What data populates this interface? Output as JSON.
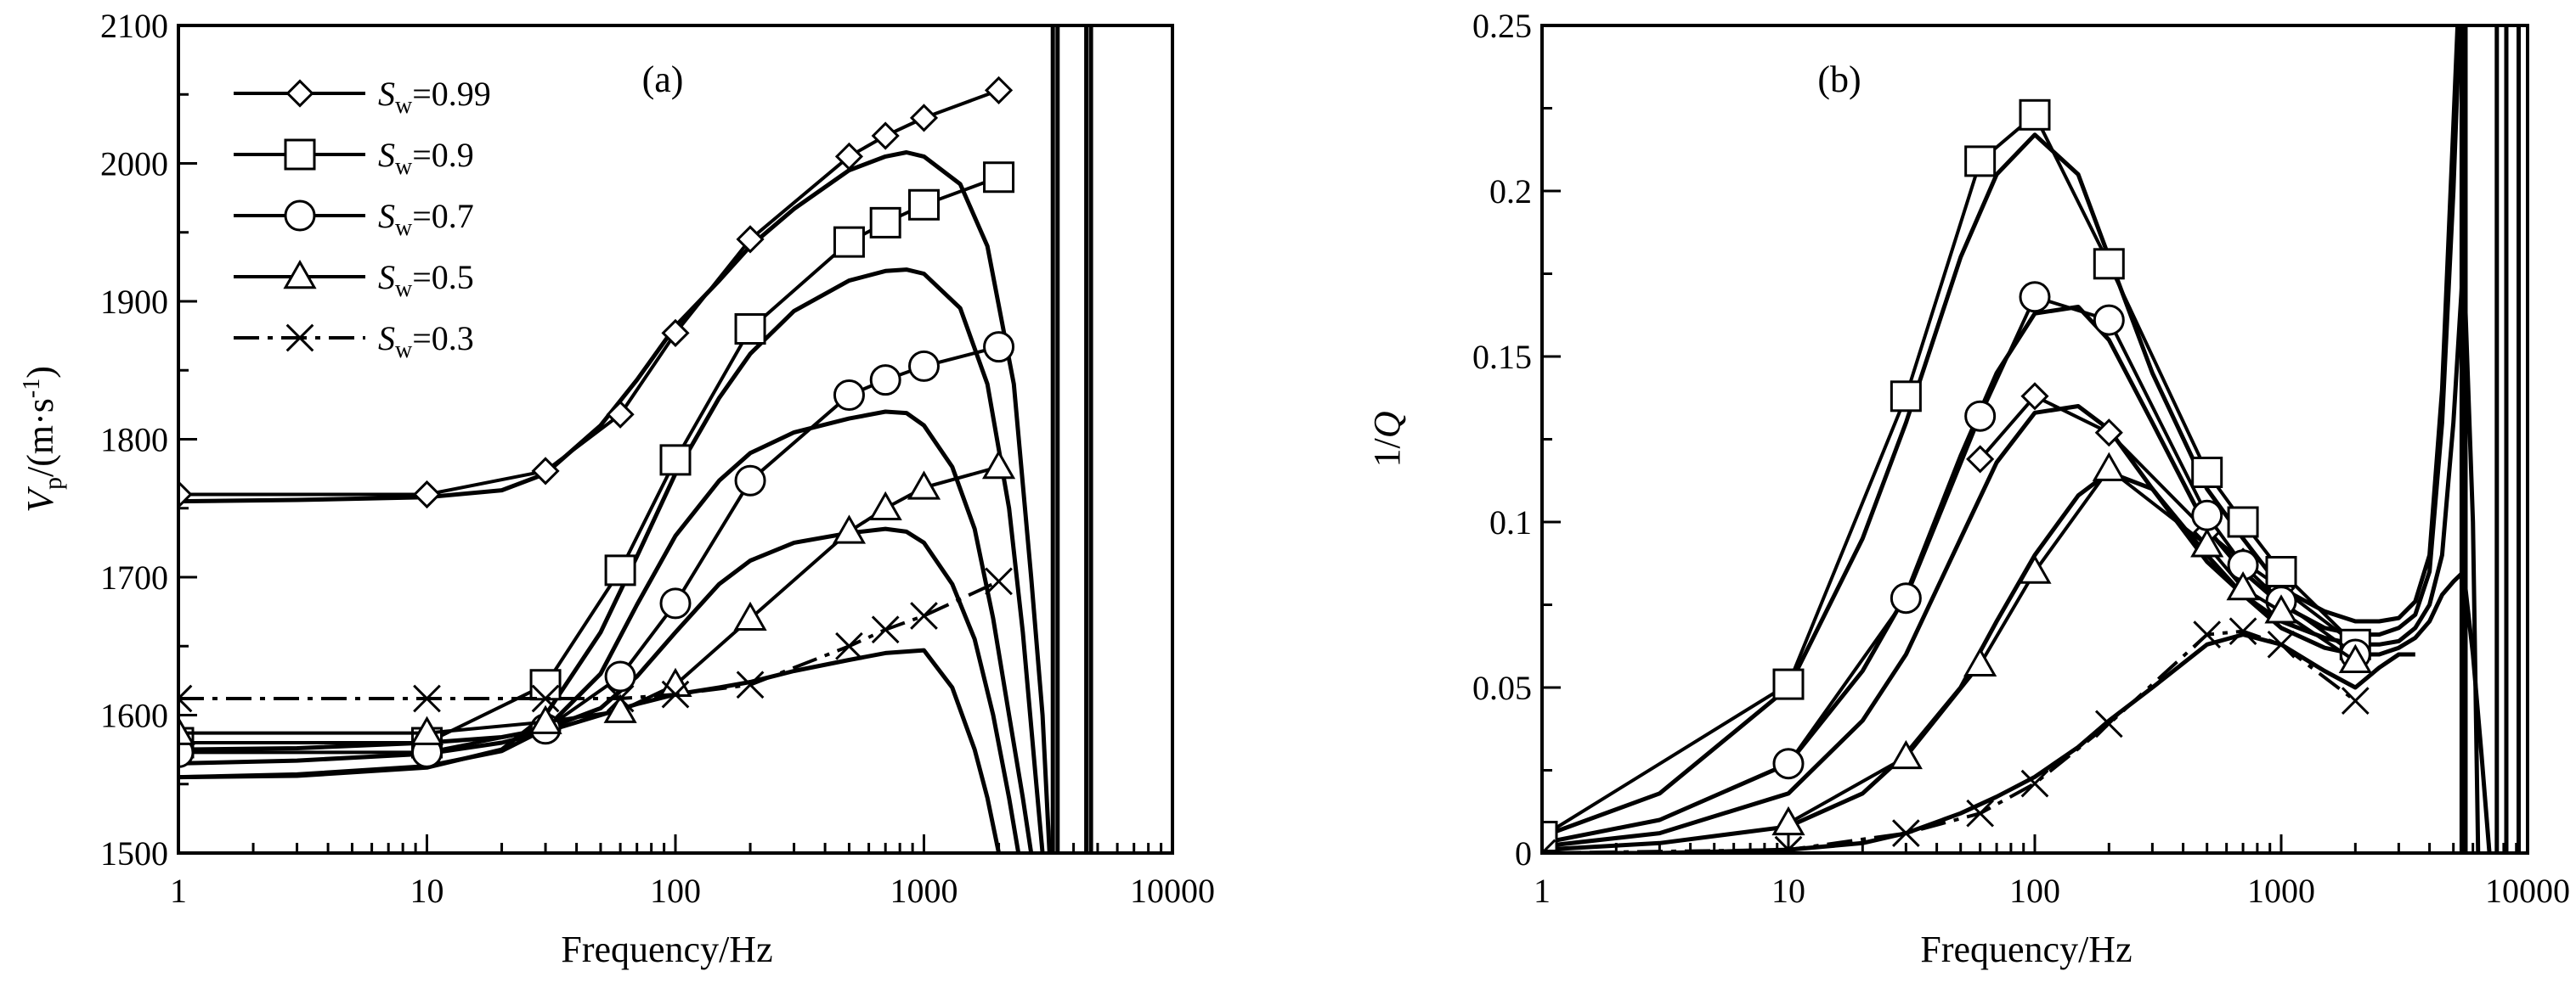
{
  "chart_data": [
    {
      "type": "line",
      "panel_label": "(a)",
      "xlabel": "Frequency/Hz",
      "ylabel_main": "V",
      "ylabel_sub": "p",
      "ylabel_unit": "/(m·s",
      "ylabel_unit_sup": "-1",
      "ylabel_close": ")",
      "xscale": "log",
      "xlim": [
        1,
        10000
      ],
      "ylim": [
        1500,
        2100
      ],
      "xticks": [
        1,
        10,
        100,
        1000,
        10000
      ],
      "xtick_labels": [
        "1",
        "10",
        "100",
        "1000",
        "10000"
      ],
      "yticks": [
        1500,
        1600,
        1700,
        1800,
        1900,
        2000,
        2100
      ],
      "ytick_labels": [
        "1500",
        "1600",
        "1700",
        "1800",
        "1900",
        "2000",
        "2100"
      ],
      "grid": false,
      "legend_position": "top-left",
      "series": [
        {
          "name": "Sw=0.99",
          "legend_main": "S",
          "legend_sub": "w",
          "legend_value": "=0.99",
          "marker": "diamond",
          "dash": "solid",
          "x": [
            1,
            10,
            30,
            60,
            100,
            200,
            500,
            700,
            1000,
            2000
          ],
          "y": [
            1760,
            1760,
            1777,
            1818,
            1877,
            1945,
            2005,
            2020,
            2033,
            2053
          ]
        },
        {
          "name": "Sw=0.9",
          "legend_main": "S",
          "legend_sub": "w",
          "legend_value": "=0.9",
          "marker": "square",
          "dash": "solid",
          "x": [
            1,
            10,
            30,
            60,
            100,
            200,
            500,
            700,
            1000,
            2000
          ],
          "y": [
            1580,
            1580,
            1622,
            1705,
            1785,
            1880,
            1943,
            1957,
            1970,
            1990
          ]
        },
        {
          "name": "Sw=0.7",
          "legend_main": "S",
          "legend_sub": "w",
          "legend_value": "=0.7",
          "marker": "circle",
          "dash": "solid",
          "x": [
            1,
            10,
            30,
            60,
            100,
            200,
            500,
            700,
            1000,
            2000
          ],
          "y": [
            1573,
            1573,
            1590,
            1628,
            1681,
            1770,
            1832,
            1843,
            1853,
            1867
          ]
        },
        {
          "name": "Sw=0.5",
          "legend_main": "S",
          "legend_sub": "w",
          "legend_value": "=0.5",
          "marker": "triangle",
          "dash": "solid",
          "x": [
            1,
            10,
            30,
            60,
            100,
            200,
            500,
            700,
            1000,
            2000
          ],
          "y": [
            1587,
            1587,
            1595,
            1603,
            1622,
            1670,
            1733,
            1750,
            1765,
            1780
          ]
        },
        {
          "name": "Sw=0.3",
          "legend_main": "S",
          "legend_sub": "w",
          "legend_value": "=0.3",
          "marker": "x",
          "dash": "dashdot",
          "x": [
            1,
            10,
            30,
            60,
            100,
            200,
            500,
            700,
            1000,
            2000
          ],
          "y": [
            1612,
            1612,
            1612,
            1612,
            1615,
            1622,
            1650,
            1662,
            1672,
            1697
          ]
        }
      ],
      "model_curves": [
        {
          "x": [
            1,
            3,
            10,
            20,
            30,
            50,
            70,
            100,
            150,
            200,
            300,
            500,
            700,
            850,
            1000,
            1400,
            1800,
            2300,
            2700,
            3000,
            3200
          ],
          "y": [
            1755,
            1756,
            1758,
            1763,
            1775,
            1810,
            1843,
            1882,
            1915,
            1940,
            1967,
            1995,
            2005,
            2008,
            2005,
            1985,
            1940,
            1840,
            1700,
            1600,
            1500
          ]
        },
        {
          "x": [
            1,
            3,
            10,
            20,
            30,
            50,
            70,
            100,
            150,
            200,
            300,
            500,
            700,
            850,
            1000,
            1400,
            1800,
            2200,
            2500,
            2800,
            3000
          ],
          "y": [
            1555,
            1556,
            1562,
            1575,
            1600,
            1660,
            1715,
            1775,
            1830,
            1862,
            1893,
            1915,
            1922,
            1923,
            1920,
            1895,
            1840,
            1750,
            1660,
            1560,
            1500
          ]
        },
        {
          "x": [
            1,
            3,
            10,
            20,
            30,
            50,
            70,
            100,
            150,
            200,
            300,
            500,
            700,
            850,
            1000,
            1300,
            1600,
            1900,
            2200,
            2500,
            2700
          ],
          "y": [
            1555,
            1557,
            1563,
            1574,
            1590,
            1630,
            1680,
            1730,
            1770,
            1790,
            1805,
            1815,
            1820,
            1819,
            1810,
            1780,
            1735,
            1670,
            1600,
            1540,
            1500
          ]
        },
        {
          "x": [
            1,
            3,
            10,
            20,
            30,
            50,
            70,
            100,
            150,
            200,
            300,
            500,
            700,
            850,
            1000,
            1300,
            1600,
            1900,
            2200,
            2400
          ],
          "y": [
            1575,
            1576,
            1580,
            1584,
            1590,
            1605,
            1628,
            1660,
            1695,
            1712,
            1725,
            1732,
            1735,
            1733,
            1725,
            1695,
            1655,
            1600,
            1540,
            1500
          ]
        },
        {
          "x": [
            1,
            3,
            10,
            20,
            30,
            50,
            70,
            100,
            150,
            200,
            300,
            500,
            700,
            1000,
            1300,
            1600,
            1800,
            2000
          ],
          "y": [
            1565,
            1567,
            1572,
            1580,
            1588,
            1600,
            1608,
            1615,
            1620,
            1624,
            1632,
            1640,
            1645,
            1647,
            1620,
            1575,
            1540,
            1500
          ]
        },
        {
          "x": [
            3300,
            3300
          ],
          "y": [
            1500,
            2100
          ]
        },
        {
          "x": [
            3450,
            3450
          ],
          "y": [
            1500,
            2100
          ]
        },
        {
          "x": [
            4500,
            4500
          ],
          "y": [
            1500,
            2100
          ]
        },
        {
          "x": [
            4700,
            4700
          ],
          "y": [
            1500,
            2100
          ]
        }
      ]
    },
    {
      "type": "line",
      "panel_label": "(b)",
      "xlabel": "Frequency/Hz",
      "ylabel_main": "1/",
      "ylabel_italic": "Q",
      "xscale": "log",
      "xlim": [
        1,
        10000
      ],
      "ylim": [
        0,
        0.25
      ],
      "xticks": [
        1,
        10,
        100,
        1000,
        10000
      ],
      "xtick_labels": [
        "1",
        "10",
        "100",
        "1000",
        "10000"
      ],
      "yticks": [
        0,
        0.05,
        0.1,
        0.15,
        0.2,
        0.25
      ],
      "ytick_labels": [
        "0",
        "0.05",
        "0.1",
        "0.15",
        "0.2",
        "0.25"
      ],
      "grid": false,
      "series": [
        {
          "name": "Sw=0.99",
          "marker": "diamond",
          "dash": "solid",
          "x": [
            60,
            100,
            200,
            500,
            700,
            1000,
            2000
          ],
          "y": [
            0.119,
            0.138,
            0.127,
            0.097,
            0.088,
            0.08,
            0.063
          ]
        },
        {
          "name": "Sw=0.9",
          "marker": "square",
          "dash": "solid",
          "x": [
            1,
            10,
            30,
            60,
            100,
            200,
            500,
            700,
            1000,
            2000
          ],
          "y": [
            0.005,
            0.051,
            0.138,
            0.209,
            0.223,
            0.178,
            0.115,
            0.1,
            0.085,
            0.063
          ]
        },
        {
          "name": "Sw=0.7",
          "marker": "circle",
          "dash": "solid",
          "x": [
            10,
            30,
            60,
            100,
            200,
            500,
            700,
            1000,
            2000
          ],
          "y": [
            0.027,
            0.077,
            0.132,
            0.168,
            0.161,
            0.102,
            0.087,
            0.076,
            0.06
          ]
        },
        {
          "name": "Sw=0.5",
          "marker": "triangle",
          "dash": "solid",
          "x": [
            10,
            30,
            60,
            100,
            200,
            500,
            700,
            1000,
            2000
          ],
          "y": [
            0.009,
            0.029,
            0.057,
            0.085,
            0.116,
            0.093,
            0.08,
            0.073,
            0.058
          ]
        },
        {
          "name": "Sw=0.3",
          "marker": "x",
          "dash": "dashdot",
          "x": [
            1,
            10,
            30,
            60,
            100,
            200,
            500,
            700,
            1000,
            2000
          ],
          "y": [
            0,
            0.001,
            0.006,
            0.012,
            0.021,
            0.039,
            0.066,
            0.067,
            0.063,
            0.046
          ]
        }
      ],
      "model_curves": [
        {
          "x": [
            1,
            3,
            10,
            20,
            30,
            50,
            70,
            100,
            150,
            200,
            300,
            500,
            700,
            1000,
            1500,
            2000,
            2500,
            3000,
            3500,
            4000,
            4500,
            5000,
            5200
          ],
          "y": [
            0.005,
            0.018,
            0.05,
            0.095,
            0.13,
            0.18,
            0.205,
            0.217,
            0.205,
            0.18,
            0.145,
            0.11,
            0.095,
            0.08,
            0.073,
            0.07,
            0.07,
            0.071,
            0.076,
            0.09,
            0.14,
            0.22,
            0.25
          ]
        },
        {
          "x": [
            1,
            3,
            10,
            20,
            30,
            50,
            70,
            100,
            150,
            200,
            300,
            500,
            700,
            1000,
            1500,
            2000,
            2500,
            3000,
            3500,
            4000,
            4500,
            5000,
            5300
          ],
          "y": [
            0.003,
            0.01,
            0.027,
            0.055,
            0.078,
            0.12,
            0.145,
            0.163,
            0.165,
            0.155,
            0.13,
            0.098,
            0.085,
            0.075,
            0.068,
            0.066,
            0.066,
            0.068,
            0.072,
            0.085,
            0.13,
            0.2,
            0.25
          ]
        },
        {
          "x": [
            1,
            3,
            10,
            20,
            30,
            50,
            70,
            100,
            150,
            200,
            300,
            500,
            700,
            1000,
            1500,
            2000,
            2500,
            3000,
            3500,
            4000,
            4500,
            5000,
            5500,
            6000,
            6300
          ],
          "y": [
            0.002,
            0.006,
            0.018,
            0.04,
            0.06,
            0.095,
            0.118,
            0.133,
            0.135,
            0.128,
            0.11,
            0.088,
            0.078,
            0.07,
            0.065,
            0.063,
            0.063,
            0.064,
            0.068,
            0.075,
            0.09,
            0.13,
            0.18,
            0.1,
            0.0
          ]
        },
        {
          "x": [
            1,
            3,
            10,
            20,
            30,
            50,
            70,
            100,
            150,
            200,
            300,
            500,
            700,
            1000,
            1500,
            2000,
            2500,
            3000,
            3500,
            4000,
            4500,
            5000,
            5500,
            6000,
            6500,
            7000
          ],
          "y": [
            0.001,
            0.003,
            0.008,
            0.018,
            0.03,
            0.05,
            0.07,
            0.09,
            0.108,
            0.115,
            0.11,
            0.09,
            0.078,
            0.068,
            0.062,
            0.06,
            0.06,
            0.062,
            0.065,
            0.07,
            0.078,
            0.082,
            0.085,
            0.06,
            0.03,
            0.0
          ]
        },
        {
          "x": [
            1,
            3,
            10,
            20,
            30,
            50,
            70,
            100,
            150,
            200,
            300,
            500,
            700,
            1000,
            1500,
            2000,
            2500,
            3000,
            3500
          ],
          "y": [
            0.0,
            0.0,
            0.001,
            0.003,
            0.006,
            0.012,
            0.017,
            0.023,
            0.032,
            0.04,
            0.05,
            0.063,
            0.066,
            0.063,
            0.055,
            0.05,
            0.056,
            0.06,
            0.06
          ]
        },
        {
          "x": [
            5400,
            5400
          ],
          "y": [
            0,
            0.25
          ]
        },
        {
          "x": [
            5600,
            5600
          ],
          "y": [
            0,
            0.25
          ]
        },
        {
          "x": [
            7500,
            7500
          ],
          "y": [
            0,
            0.25
          ]
        },
        {
          "x": [
            8200,
            8200
          ],
          "y": [
            0,
            0.25
          ]
        },
        {
          "x": [
            9200,
            9200
          ],
          "y": [
            0,
            0.25
          ]
        }
      ]
    }
  ]
}
